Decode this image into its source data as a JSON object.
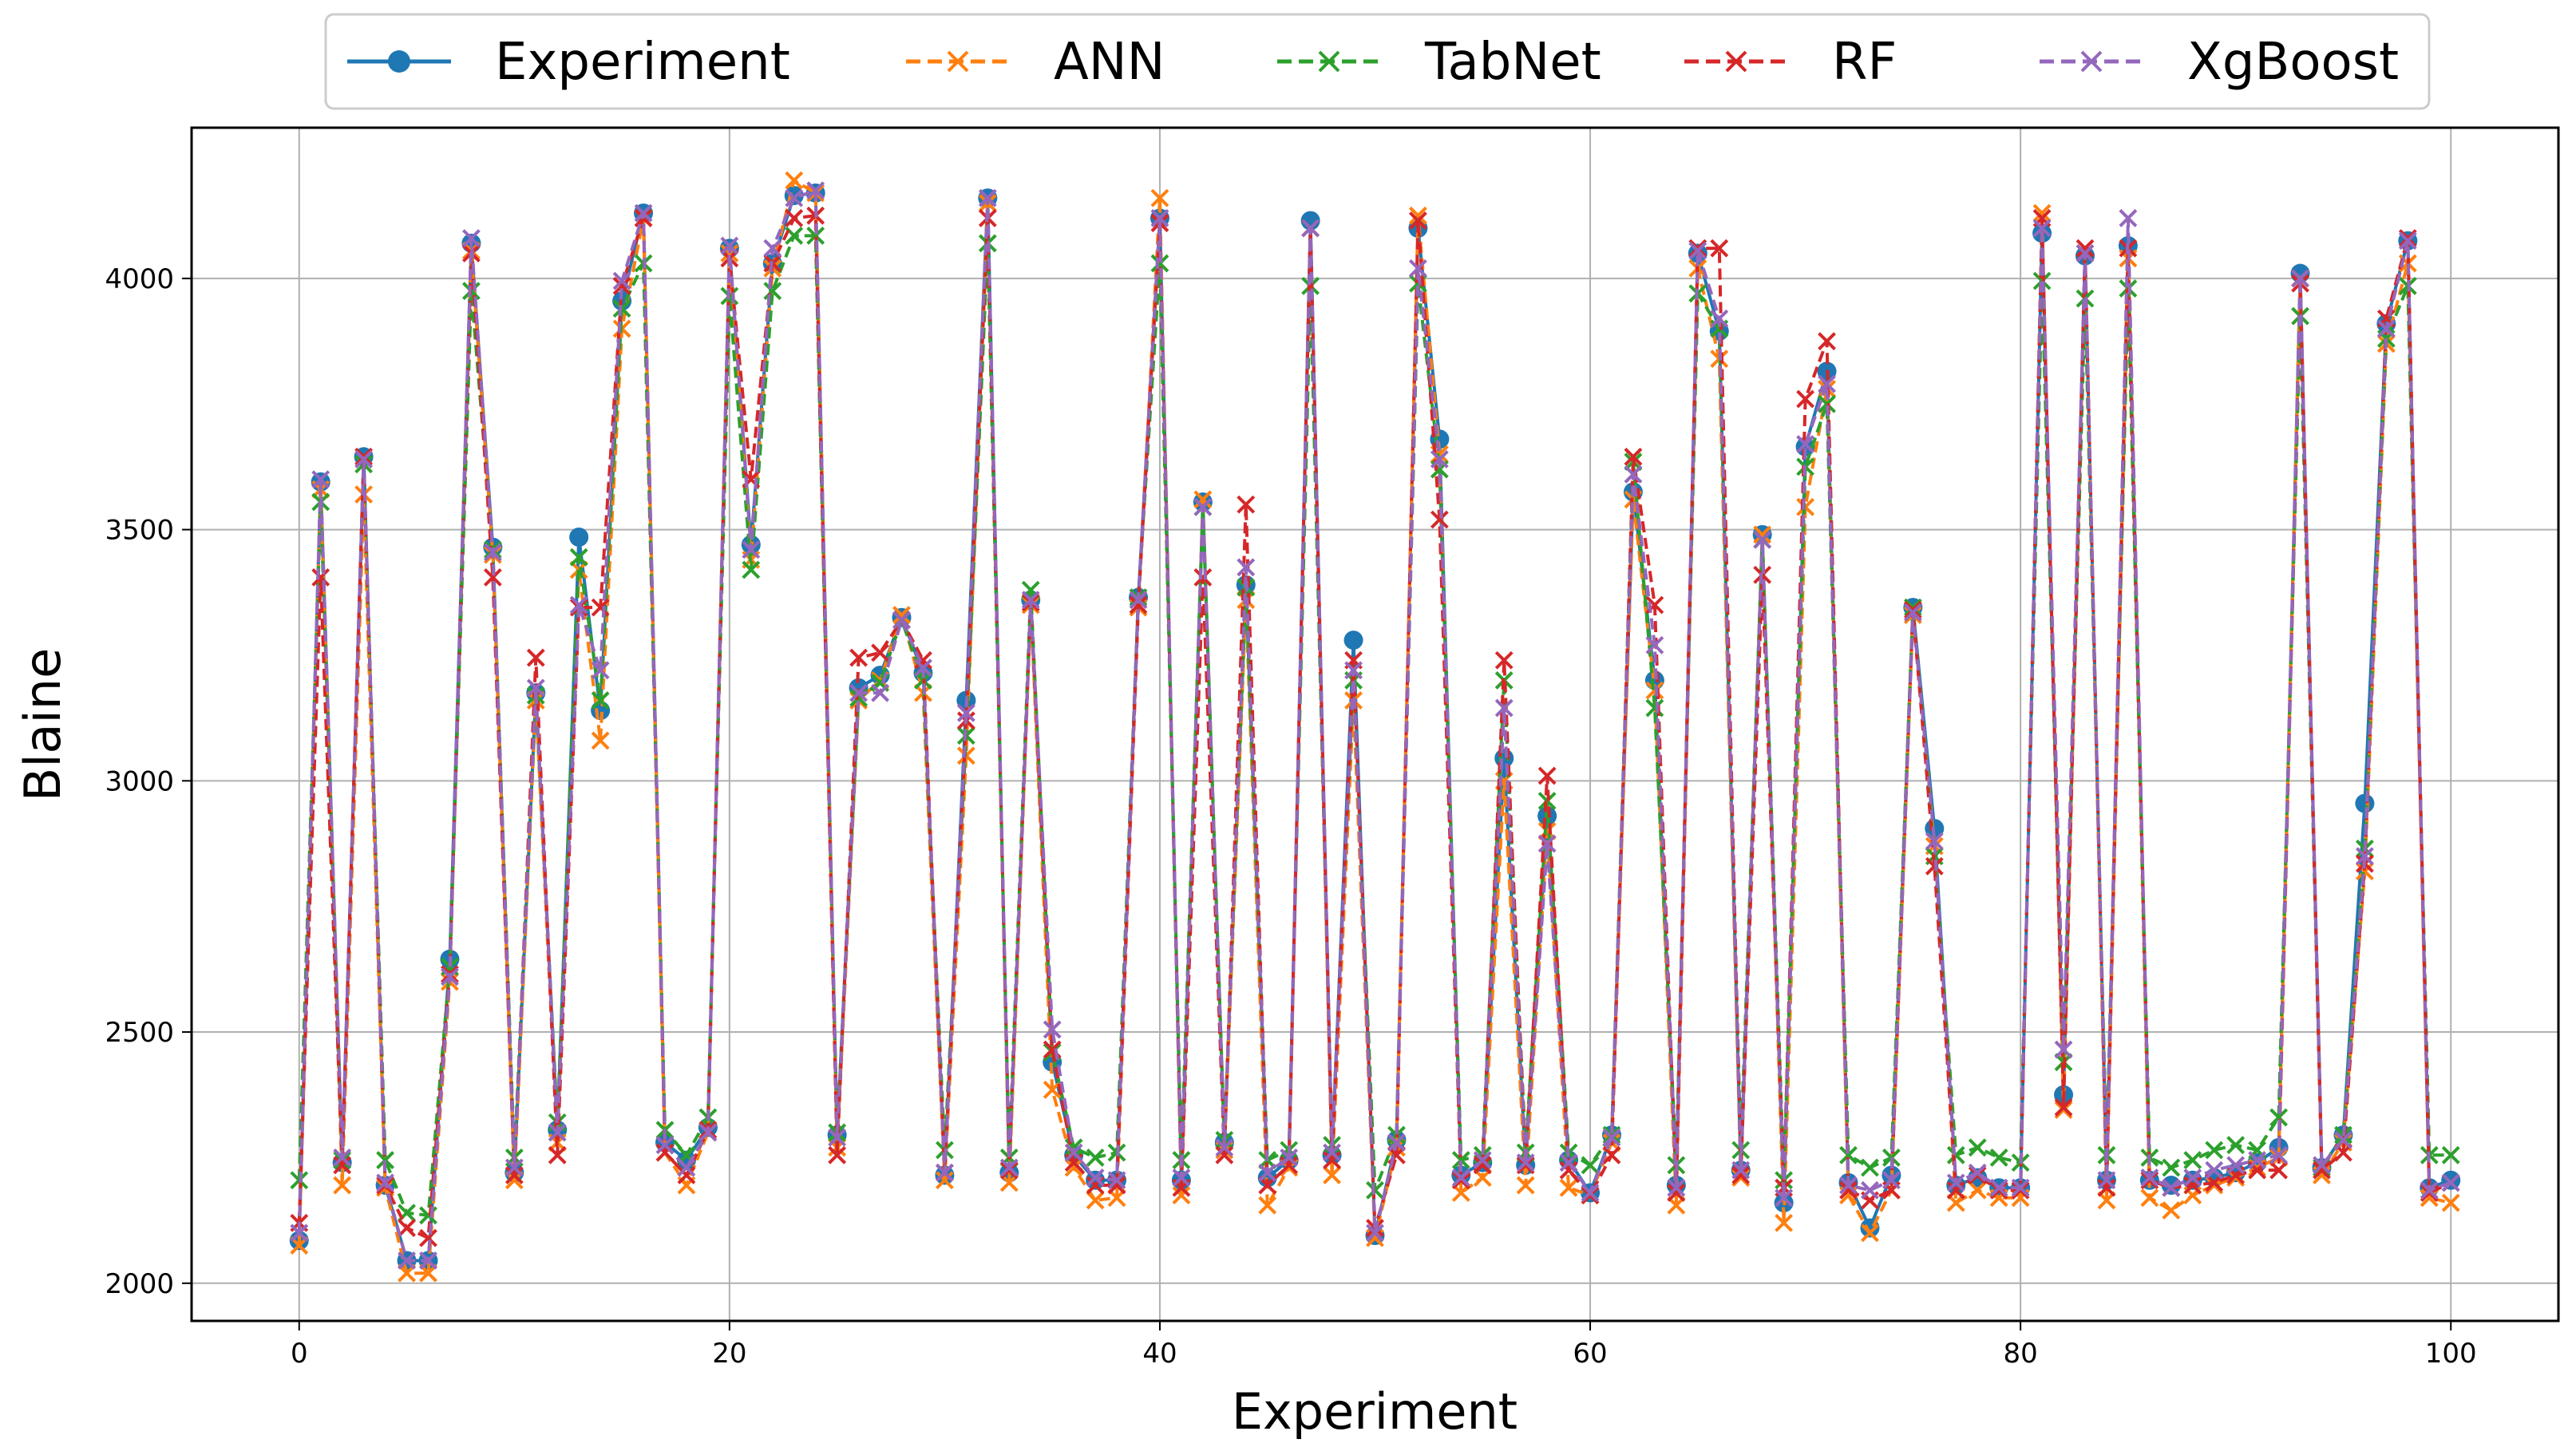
{
  "chart_data": {
    "type": "line",
    "xlabel": "Experiment",
    "ylabel": "Blaine",
    "xlim": [
      -5,
      105
    ],
    "ylim": [
      1925,
      4300
    ],
    "xticks": [
      0,
      20,
      40,
      60,
      80,
      100
    ],
    "yticks": [
      2000,
      2500,
      3000,
      3500,
      4000
    ],
    "grid": true,
    "legend_position": "top-center",
    "x": [
      0,
      1,
      2,
      3,
      4,
      5,
      6,
      7,
      8,
      9,
      10,
      11,
      12,
      13,
      14,
      15,
      16,
      17,
      18,
      19,
      20,
      21,
      22,
      23,
      24,
      25,
      26,
      27,
      28,
      29,
      30,
      31,
      32,
      33,
      34,
      35,
      36,
      37,
      38,
      39,
      40,
      41,
      42,
      43,
      44,
      45,
      46,
      47,
      48,
      49,
      50,
      51,
      52,
      53,
      54,
      55,
      56,
      57,
      58,
      59,
      60,
      61,
      62,
      63,
      64,
      65,
      66,
      67,
      68,
      69,
      70,
      71,
      72,
      73,
      74,
      75,
      76,
      77,
      78,
      79,
      80,
      81,
      82,
      83,
      84,
      85,
      86,
      87,
      88,
      89,
      90,
      91,
      92,
      93,
      94,
      95,
      96,
      97,
      98,
      99,
      100
    ],
    "series": [
      {
        "name": "Experiment",
        "color": "#1f77b4",
        "style": "solid",
        "marker": "circle",
        "values": [
          2085,
          3595,
          2240,
          3645,
          2195,
          2045,
          2045,
          2645,
          4070,
          3465,
          2220,
          3175,
          2305,
          3485,
          3140,
          3955,
          4130,
          2280,
          2245,
          2310,
          4060,
          3470,
          4030,
          4165,
          4170,
          2295,
          3185,
          3210,
          3325,
          3215,
          2215,
          3160,
          4160,
          2220,
          3360,
          2440,
          2255,
          2205,
          2205,
          3365,
          4120,
          2205,
          3555,
          2280,
          3390,
          2210,
          2245,
          4115,
          2255,
          3280,
          2095,
          2285,
          4100,
          3680,
          2215,
          2240,
          3045,
          2235,
          2930,
          2245,
          2180,
          2295,
          3575,
          3200,
          2195,
          4050,
          3895,
          2225,
          3490,
          2160,
          3665,
          3815,
          2200,
          2110,
          2215,
          3345,
          2905,
          2195,
          2210,
          2190,
          2190,
          4090,
          2375,
          4045,
          2205,
          4065,
          2205,
          2195,
          2205,
          2210,
          2220,
          2240,
          2270,
          4010,
          2230,
          2295,
          2955,
          3910,
          4075,
          2190,
          2205
        ]
      },
      {
        "name": "ANN",
        "color": "#ff7f0e",
        "style": "dashed",
        "marker": "x",
        "values": [
          2075,
          3580,
          2195,
          3570,
          2190,
          2020,
          2020,
          2600,
          4055,
          3450,
          2205,
          3160,
          2280,
          3420,
          3080,
          3900,
          4120,
          2260,
          2195,
          2300,
          4050,
          3440,
          4020,
          4195,
          4170,
          2270,
          3160,
          3200,
          3330,
          3175,
          2205,
          3050,
          4150,
          2200,
          3350,
          2385,
          2230,
          2165,
          2170,
          3345,
          4160,
          2175,
          3560,
          2265,
          3360,
          2155,
          2230,
          4100,
          2215,
          3160,
          2090,
          2270,
          4125,
          3650,
          2180,
          2210,
          3000,
          2195,
          2900,
          2190,
          2175,
          2280,
          3560,
          3180,
          2155,
          4020,
          3840,
          2210,
          3490,
          2120,
          3545,
          3780,
          2175,
          2100,
          2185,
          3330,
          2870,
          2160,
          2185,
          2170,
          2170,
          4130,
          2345,
          4050,
          2165,
          4040,
          2170,
          2145,
          2175,
          2195,
          2210,
          2230,
          2250,
          4000,
          2215,
          2280,
          2820,
          3870,
          4030,
          2170,
          2160
        ]
      },
      {
        "name": "TabNet",
        "color": "#2ca02c",
        "style": "dashed",
        "marker": "x",
        "values": [
          2205,
          3555,
          2245,
          3630,
          2245,
          2140,
          2135,
          2630,
          3975,
          3460,
          2250,
          3170,
          2320,
          3445,
          3160,
          3940,
          4030,
          2305,
          2255,
          2330,
          3965,
          3420,
          3975,
          4085,
          4085,
          2300,
          3165,
          3195,
          3320,
          3200,
          2265,
          3090,
          4070,
          2250,
          3380,
          2460,
          2270,
          2250,
          2260,
          3365,
          4030,
          2245,
          3545,
          2285,
          3385,
          2245,
          2265,
          3985,
          2275,
          3200,
          2185,
          2295,
          3990,
          3620,
          2245,
          2255,
          3200,
          2260,
          2960,
          2260,
          2235,
          2295,
          3635,
          3145,
          2235,
          3970,
          3900,
          2265,
          3480,
          2205,
          3625,
          3750,
          2255,
          2230,
          2250,
          3345,
          2850,
          2255,
          2270,
          2250,
          2240,
          3995,
          2440,
          3960,
          2255,
          3980,
          2250,
          2230,
          2245,
          2265,
          2275,
          2265,
          2330,
          3925,
          2230,
          2295,
          2865,
          3880,
          3985,
          2255,
          2255
        ]
      },
      {
        "name": "RF",
        "color": "#d62728",
        "style": "dashed",
        "marker": "x",
        "values": [
          2120,
          3405,
          2235,
          3645,
          2195,
          2110,
          2090,
          2615,
          4050,
          3405,
          2215,
          3245,
          2255,
          3345,
          3345,
          3985,
          4120,
          2260,
          2215,
          2305,
          4040,
          3600,
          4030,
          4120,
          4125,
          2255,
          3245,
          3255,
          3320,
          3240,
          2220,
          3120,
          4120,
          2225,
          3355,
          2465,
          2240,
          2195,
          2195,
          3350,
          4110,
          2190,
          3405,
          2255,
          3550,
          2195,
          2235,
          4100,
          2245,
          3240,
          2110,
          2255,
          4115,
          3520,
          2205,
          2235,
          3240,
          2235,
          3010,
          2225,
          2175,
          2255,
          3645,
          3350,
          2180,
          4060,
          4060,
          2215,
          3410,
          2190,
          3760,
          3875,
          2185,
          2165,
          2185,
          3340,
          2830,
          2185,
          2215,
          2185,
          2185,
          4120,
          2350,
          4060,
          2190,
          4060,
          2205,
          2190,
          2195,
          2200,
          2215,
          2225,
          2225,
          3990,
          2225,
          2260,
          2835,
          3920,
          4080,
          2180,
          2200
        ]
      },
      {
        "name": "XgBoost",
        "color": "#9467bd",
        "style": "dashed",
        "marker": "x",
        "values": [
          2100,
          3600,
          2250,
          3640,
          2200,
          2045,
          2045,
          2610,
          4080,
          3455,
          2230,
          3185,
          2300,
          3350,
          3220,
          3995,
          4130,
          2275,
          2230,
          2300,
          4065,
          3460,
          4060,
          4160,
          4175,
          2290,
          3175,
          3175,
          3320,
          3225,
          2220,
          3135,
          4160,
          2230,
          3360,
          2505,
          2260,
          2210,
          2205,
          3360,
          4120,
          2210,
          3545,
          2270,
          3425,
          2220,
          2250,
          4100,
          2260,
          3220,
          2100,
          2280,
          4020,
          3640,
          2210,
          2245,
          3145,
          2240,
          2875,
          2240,
          2180,
          2290,
          3610,
          3270,
          2190,
          4055,
          3920,
          2225,
          3480,
          2170,
          3670,
          3790,
          2195,
          2185,
          2205,
          3335,
          2880,
          2200,
          2220,
          2190,
          2190,
          4100,
          2465,
          4050,
          2205,
          4120,
          2210,
          2190,
          2210,
          2225,
          2235,
          2245,
          2255,
          4000,
          2235,
          2285,
          2850,
          3900,
          4075,
          2185,
          2200
        ]
      }
    ]
  }
}
